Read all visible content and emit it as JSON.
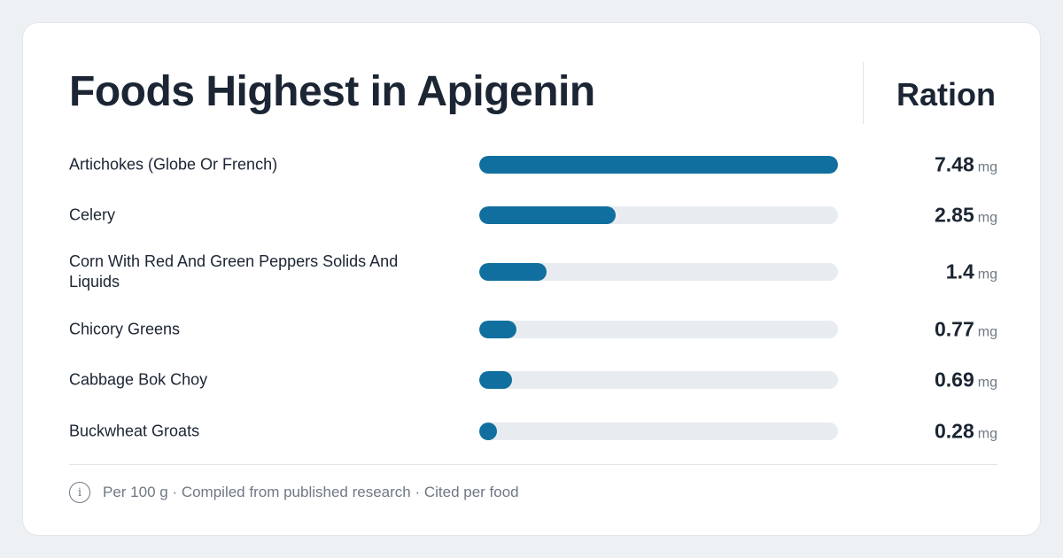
{
  "title": "Foods Highest in Apigenin",
  "ration_header": "Ration",
  "footer": {
    "icon": "info-icon",
    "icon_glyph": "i",
    "text": "Per 100 g · Compiled from published research · Cited per food"
  },
  "colors": {
    "bar_fill": "#106f9e",
    "bar_track": "#e8ecf0",
    "background": "#eef1f4",
    "text": "#1b2533"
  },
  "chart_data": {
    "type": "bar",
    "orientation": "horizontal",
    "title": "Foods Highest in Apigenin",
    "unit": "mg",
    "categories": [
      "Artichokes (Globe Or French)",
      "Celery",
      "Corn With Red And Green Peppers Solids And Liquids",
      "Chicory Greens",
      "Cabbage Bok Choy",
      "Buckwheat Groats"
    ],
    "values": [
      7.48,
      2.85,
      1.4,
      0.77,
      0.69,
      0.28
    ],
    "value_labels": [
      "7.48",
      "2.85",
      "1.4",
      "0.77",
      "0.69",
      "0.28"
    ],
    "xlim": [
      0,
      7.48
    ],
    "grid": false,
    "legend": "none"
  }
}
